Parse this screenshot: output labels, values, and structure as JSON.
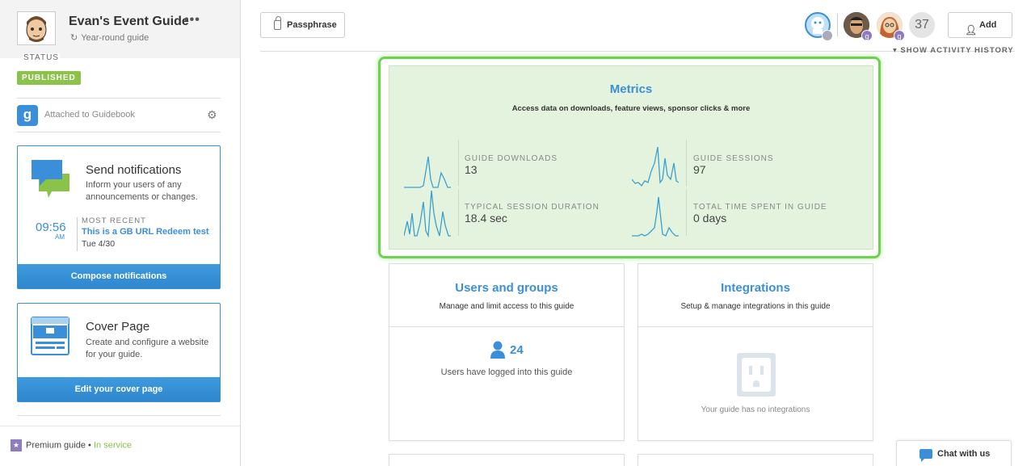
{
  "guide": {
    "title": "Evan's Event Guide",
    "subtitle": "Year-round guide",
    "more": "•••",
    "status_label": "STATUS",
    "status_badge": "PUBLISHED",
    "attached": "Attached to Guidebook",
    "gb_letter": "g"
  },
  "notifications": {
    "title": "Send notifications",
    "desc": "Inform your users of any announcements or changes.",
    "time": "09:56",
    "ampm": "AM",
    "recent_label": "MOST RECENT",
    "recent_title": "This is a GB URL Redeem test",
    "recent_date": "Tue 4/30",
    "button": "Compose notifications"
  },
  "cover": {
    "title": "Cover Page",
    "desc": "Create and configure a website for your guide.",
    "button": "Edit your cover page"
  },
  "footer": {
    "premium": "Premium guide",
    "bullet": "•",
    "service": "In service"
  },
  "header": {
    "passphrase": "Passphrase",
    "collaborator_count": "37",
    "badge_letter": "g",
    "add": "Add",
    "activity": "SHOW ACTIVITY HISTORY"
  },
  "metrics": {
    "title": "Metrics",
    "subtitle": "Access data on downloads, feature views, sponsor clicks & more",
    "items": [
      {
        "label": "GUIDE DOWNLOADS",
        "value": "13"
      },
      {
        "label": "GUIDE SESSIONS",
        "value": "97"
      },
      {
        "label": "TYPICAL SESSION DURATION",
        "value": "18.4 sec"
      },
      {
        "label": "TOTAL TIME SPENT IN GUIDE",
        "value": "0 days"
      }
    ]
  },
  "users": {
    "title": "Users and groups",
    "subtitle": "Manage and limit access to this guide",
    "count": "24",
    "desc": "Users have logged into this guide"
  },
  "integrations": {
    "title": "Integrations",
    "subtitle": "Setup & manage integrations in this guide",
    "empty": "Your guide has no integrations"
  },
  "chat": {
    "label": "Chat with us"
  },
  "colors": {
    "accent": "#3b8fd8",
    "published": "#8bc34a",
    "highlight": "#6bd44b"
  }
}
